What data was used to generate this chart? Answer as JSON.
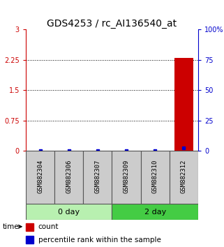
{
  "title": "GDS4253 / rc_AI136540_at",
  "samples": [
    "GSM882304",
    "GSM882306",
    "GSM882307",
    "GSM882309",
    "GSM882310",
    "GSM882312"
  ],
  "groups": [
    {
      "label": "0 day",
      "indices": [
        0,
        1,
        2
      ],
      "light_color": "#c8f5c0",
      "dark_color": "#5cd65c"
    },
    {
      "label": "2 day",
      "indices": [
        3,
        4,
        5
      ],
      "light_color": "#c8f5c0",
      "dark_color": "#3dba3d"
    }
  ],
  "bar_values": [
    0,
    0,
    0,
    0,
    0,
    2.3
  ],
  "percentile_values": [
    0,
    0,
    0,
    0,
    0,
    2
  ],
  "left_ylim": [
    0,
    3
  ],
  "right_ylim": [
    0,
    100
  ],
  "left_yticks": [
    0,
    0.75,
    1.5,
    2.25,
    3
  ],
  "left_yticklabels": [
    "0",
    "0.75",
    "1.5",
    "2.25",
    "3"
  ],
  "right_yticks": [
    0,
    25,
    50,
    75,
    100
  ],
  "right_yticklabels": [
    "0",
    "25",
    "50",
    "75",
    "100%"
  ],
  "bar_color": "#cc0000",
  "percentile_color": "#0000cc",
  "sample_box_color": "#cccccc",
  "group0_color": "#b8f0b0",
  "group1_color": "#44cc44",
  "legend_count_color": "#cc0000",
  "legend_pct_color": "#0000cc",
  "title_fontsize": 10,
  "tick_fontsize": 7,
  "sample_fontsize": 6.5,
  "group_fontsize": 8,
  "legend_fontsize": 7.5
}
